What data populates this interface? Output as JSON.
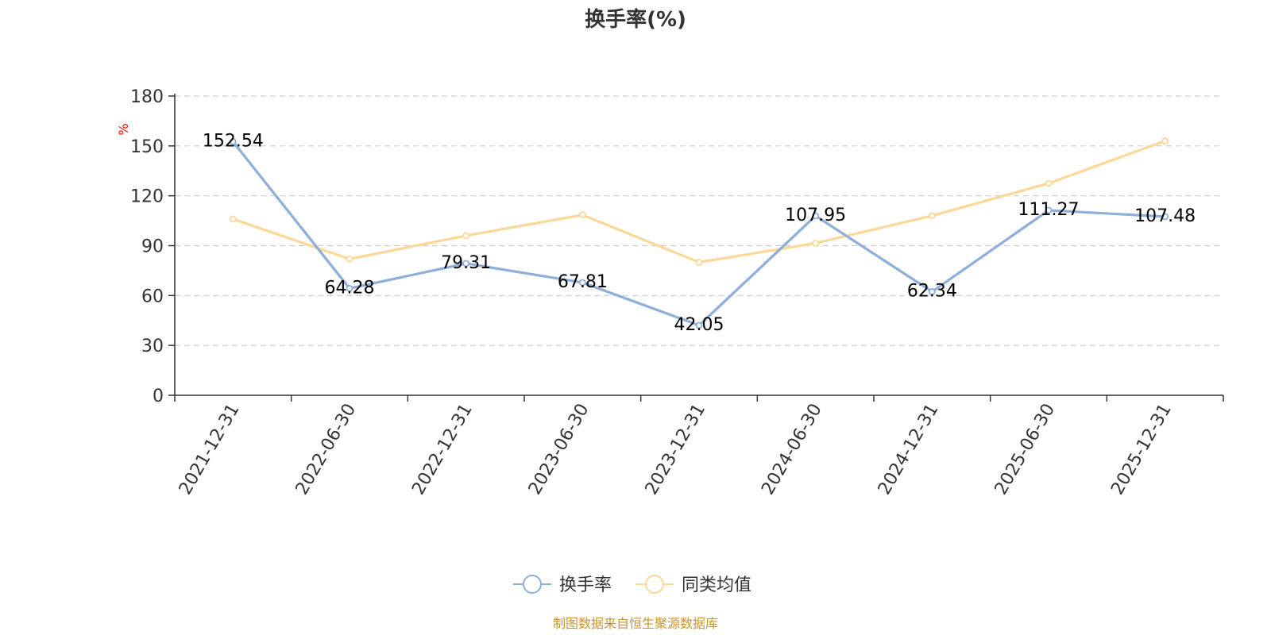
{
  "chart_data": {
    "type": "line",
    "title": "换手率(%)",
    "ylabel": "%",
    "xlabel": "",
    "ylim": [
      0,
      180
    ],
    "yticks": [
      0,
      30,
      60,
      90,
      120,
      150,
      180
    ],
    "grid": true,
    "categories": [
      "2021-12-31",
      "2022-06-30",
      "2022-12-31",
      "2023-06-30",
      "2023-12-31",
      "2024-06-30",
      "2024-12-31",
      "2025-06-30",
      "2025-12-31"
    ],
    "series": [
      {
        "name": "换手率",
        "color": "#8eaedb",
        "values": [
          152.54,
          64.28,
          79.31,
          67.81,
          42.05,
          107.95,
          62.34,
          111.27,
          107.48
        ],
        "labels": [
          "152.54",
          "64.28",
          "79.31",
          "67.81",
          "42.05",
          "107.95",
          "62.34",
          "111.27",
          "107.48"
        ]
      },
      {
        "name": "同类均值",
        "color": "#fbd898",
        "values": [
          106,
          82,
          96,
          108.5,
          80,
          91.5,
          108,
          127.5,
          153
        ]
      }
    ],
    "legend_position": "bottom-center",
    "source": "制图数据来自恒生聚源数据库"
  }
}
